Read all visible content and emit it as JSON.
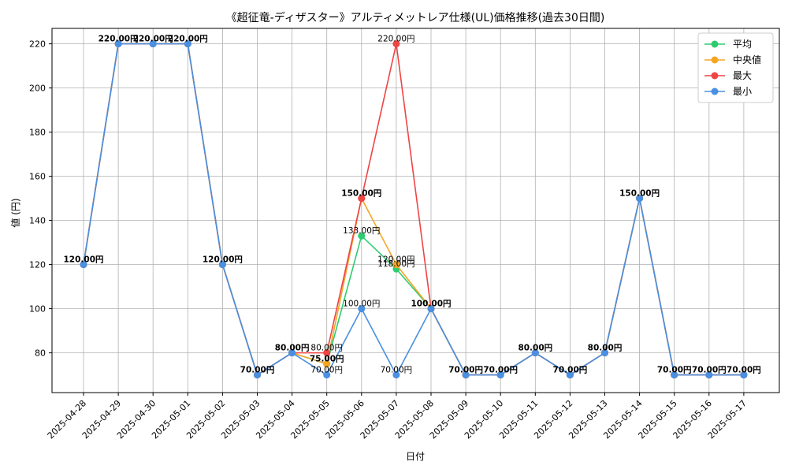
{
  "chart_data": {
    "type": "line",
    "title": "《超征竜-ディザスター》アルティメットレア仕様(UL)価格推移(過去30日間)",
    "xlabel": "日付",
    "ylabel": "値 (円)",
    "ylim": [
      62,
      227
    ],
    "yticks": [
      80,
      100,
      120,
      140,
      160,
      180,
      200,
      220
    ],
    "grid": true,
    "legend_position": "top-right",
    "categories": [
      "2025-04-28",
      "2025-04-29",
      "2025-04-30",
      "2025-05-01",
      "2025-05-02",
      "2025-05-03",
      "2025-05-04",
      "2025-05-05",
      "2025-05-06",
      "2025-05-07",
      "2025-05-08",
      "2025-05-09",
      "2025-05-10",
      "2025-05-11",
      "2025-05-12",
      "2025-05-13",
      "2025-05-14",
      "2025-05-15",
      "2025-05-16",
      "2025-05-17"
    ],
    "series": [
      {
        "name": "平均",
        "color": "#2ecc71",
        "values": [
          120,
          220,
          220,
          220,
          120,
          70,
          80,
          75,
          133,
          118,
          100,
          70,
          70,
          80,
          70,
          80,
          150,
          70,
          70,
          70
        ]
      },
      {
        "name": "中央値",
        "color": "#f5a623",
        "values": [
          120,
          220,
          220,
          220,
          120,
          70,
          80,
          75,
          150,
          120,
          100,
          70,
          70,
          80,
          70,
          80,
          150,
          70,
          70,
          70
        ]
      },
      {
        "name": "最大",
        "color": "#ef4444",
        "values": [
          120,
          220,
          220,
          220,
          120,
          70,
          80,
          80,
          150,
          220,
          100,
          70,
          70,
          80,
          70,
          80,
          150,
          70,
          70,
          70
        ]
      },
      {
        "name": "最小",
        "color": "#4a90e2",
        "values": [
          120,
          220,
          220,
          220,
          120,
          70,
          80,
          70,
          100,
          70,
          100,
          70,
          70,
          80,
          70,
          80,
          150,
          70,
          70,
          70
        ]
      }
    ],
    "data_labels": [
      {
        "x": "2025-04-28",
        "y": 120,
        "text": "120.00円",
        "bold": true
      },
      {
        "x": "2025-04-29",
        "y": 220,
        "text": "220.00円",
        "bold": true
      },
      {
        "x": "2025-04-30",
        "y": 220,
        "text": "220.00円",
        "bold": true
      },
      {
        "x": "2025-05-01",
        "y": 220,
        "text": "220.00円",
        "bold": true
      },
      {
        "x": "2025-05-02",
        "y": 120,
        "text": "120.00円",
        "bold": true
      },
      {
        "x": "2025-05-03",
        "y": 70,
        "text": "70.00円",
        "bold": true
      },
      {
        "x": "2025-05-04",
        "y": 80,
        "text": "80.00円",
        "bold": true
      },
      {
        "x": "2025-05-05",
        "y": 80,
        "text": "80.00円",
        "bold": false
      },
      {
        "x": "2025-05-05",
        "y": 75,
        "text": "75.00円",
        "bold": true
      },
      {
        "x": "2025-05-05",
        "y": 70,
        "text": "70.00円",
        "bold": false
      },
      {
        "x": "2025-05-06",
        "y": 150,
        "text": "150.00円",
        "bold": true
      },
      {
        "x": "2025-05-06",
        "y": 133,
        "text": "133.00円",
        "bold": false
      },
      {
        "x": "2025-05-06",
        "y": 100,
        "text": "100.00円",
        "bold": false
      },
      {
        "x": "2025-05-07",
        "y": 220,
        "text": "220.00円",
        "bold": false
      },
      {
        "x": "2025-05-07",
        "y": 120,
        "text": "120.00円",
        "bold": false
      },
      {
        "x": "2025-05-07",
        "y": 118,
        "text": "118.00円",
        "bold": false
      },
      {
        "x": "2025-05-07",
        "y": 70,
        "text": "70.00円",
        "bold": false
      },
      {
        "x": "2025-05-08",
        "y": 100,
        "text": "100.00円",
        "bold": true
      },
      {
        "x": "2025-05-09",
        "y": 70,
        "text": "70.00円",
        "bold": true
      },
      {
        "x": "2025-05-10",
        "y": 70,
        "text": "70.00円",
        "bold": true
      },
      {
        "x": "2025-05-11",
        "y": 80,
        "text": "80.00円",
        "bold": true
      },
      {
        "x": "2025-05-12",
        "y": 70,
        "text": "70.00円",
        "bold": true
      },
      {
        "x": "2025-05-13",
        "y": 80,
        "text": "80.00円",
        "bold": true
      },
      {
        "x": "2025-05-14",
        "y": 150,
        "text": "150.00円",
        "bold": true
      },
      {
        "x": "2025-05-15",
        "y": 70,
        "text": "70.00円",
        "bold": true
      },
      {
        "x": "2025-05-16",
        "y": 70,
        "text": "70.00円",
        "bold": true
      },
      {
        "x": "2025-05-17",
        "y": 70,
        "text": "70.00円",
        "bold": true
      }
    ]
  }
}
